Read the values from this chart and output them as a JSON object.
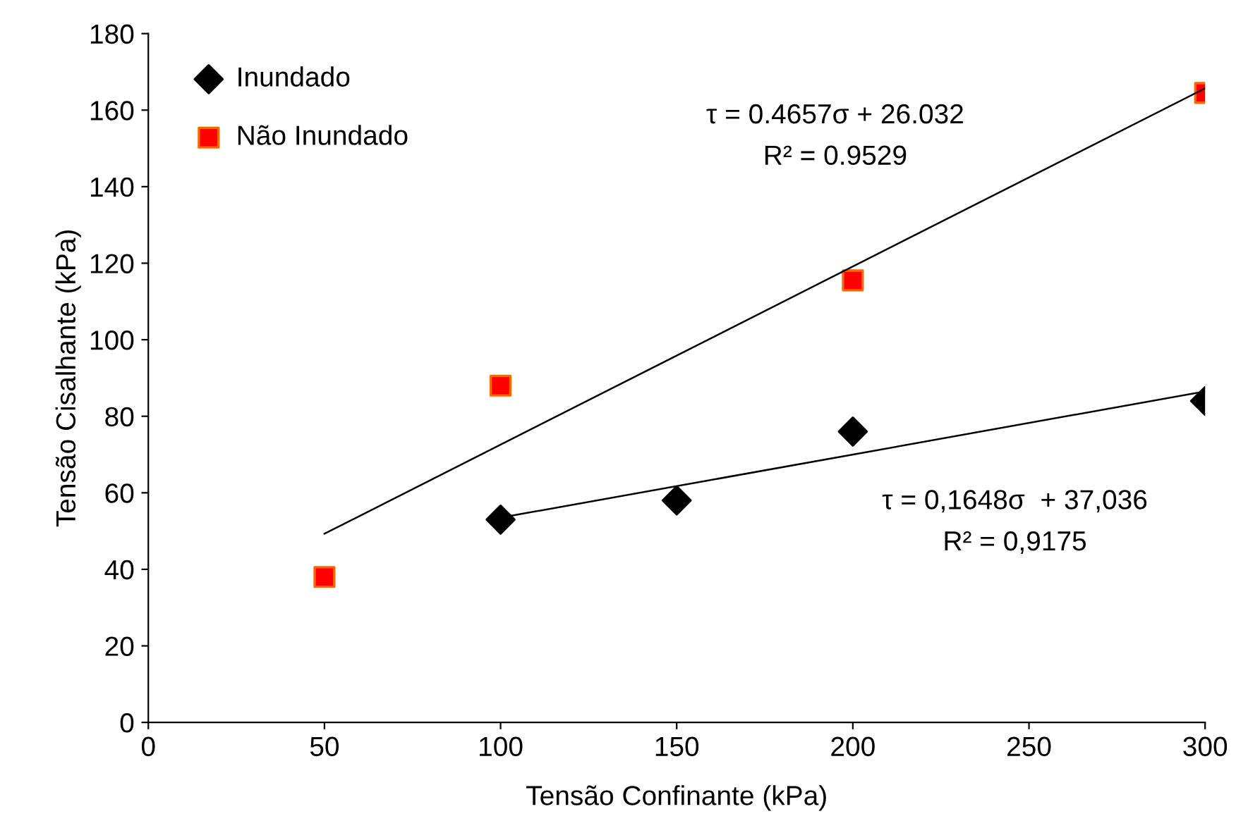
{
  "chart_data": {
    "type": "scatter",
    "xlabel": "Tensão Confinante (kPa)",
    "ylabel": "Tensão Cisalhante (kPa)",
    "xlim": [
      0,
      300
    ],
    "xticks": [
      0,
      50,
      100,
      150,
      200,
      250,
      300
    ],
    "ylim": [
      0,
      180
    ],
    "yticks": [
      0,
      20,
      40,
      60,
      80,
      100,
      120,
      140,
      160,
      180
    ],
    "grid": false,
    "legend": "top left",
    "series": [
      {
        "name": "Inundado",
        "marker": "diamond",
        "color": "#000000",
        "x": [
          100,
          150,
          200,
          300
        ],
        "values": [
          53,
          58,
          76,
          84
        ]
      },
      {
        "name": "Não Inundado",
        "marker": "square",
        "color": "#ff0000",
        "x": [
          50,
          100,
          200,
          300
        ],
        "values": [
          38,
          88,
          115.5,
          164.5
        ]
      },
      {
        "type": "line",
        "marker": "none",
        "color": "#000000",
        "x": [
          50,
          300
        ],
        "values": [
          49.3,
          165.7
        ]
      },
      {
        "type": "line",
        "marker": "none",
        "color": "#000000",
        "x": [
          100,
          300
        ],
        "values": [
          53.5,
          86.5
        ]
      }
    ],
    "annotations": [
      "τ = 0.4657σ + 26.032",
      "R² = 0.9529",
      "τ = 0,1648σ  + 37,036",
      "R² = 0,9175"
    ]
  }
}
